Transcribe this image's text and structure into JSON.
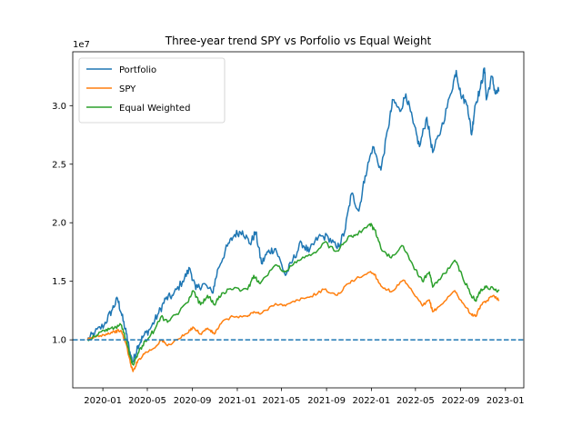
{
  "chart_data": {
    "type": "line",
    "title": "Three-year trend SPY vs Porfolio vs Equal Weight",
    "xlabel": "",
    "ylabel": "",
    "y_offset_label": "1e7",
    "ylim": [
      5.9,
      34.6
    ],
    "xlim": [
      "2019-10-11",
      "2023-02-20"
    ],
    "grid": false,
    "legend_position": "upper-left",
    "x_tick_labels": [
      "2020-01",
      "2020-05",
      "2020-09",
      "2021-01",
      "2021-05",
      "2021-09",
      "2022-01",
      "2022-05",
      "2022-09",
      "2023-01"
    ],
    "x_tick_dates": [
      "2020-01-01",
      "2020-05-01",
      "2020-09-01",
      "2021-01-01",
      "2021-05-01",
      "2021-09-01",
      "2022-01-01",
      "2022-05-01",
      "2022-09-01",
      "2023-01-01"
    ],
    "y_ticks": [
      10,
      15,
      20,
      25,
      30
    ],
    "y_tick_labels": [
      "1.0",
      "1.5",
      "2.0",
      "2.5",
      "3.0"
    ],
    "reference_line": {
      "y": 10,
      "style": "dashed",
      "color": "#1f77b4"
    },
    "series": [
      {
        "name": "Portfolio",
        "color": "#1f77b4",
        "points": [
          [
            "2019-11-20",
            10.0
          ],
          [
            "2019-12-10",
            10.6
          ],
          [
            "2020-01-05",
            11.3
          ],
          [
            "2020-01-25",
            12.5
          ],
          [
            "2020-02-10",
            13.5
          ],
          [
            "2020-02-20",
            12.3
          ],
          [
            "2020-03-05",
            10.5
          ],
          [
            "2020-03-16",
            8.7
          ],
          [
            "2020-03-23",
            8.1
          ],
          [
            "2020-04-05",
            9.5
          ],
          [
            "2020-04-20",
            10.3
          ],
          [
            "2020-05-10",
            11.0
          ],
          [
            "2020-06-01",
            12.3
          ],
          [
            "2020-06-20",
            13.5
          ],
          [
            "2020-07-10",
            13.8
          ],
          [
            "2020-08-05",
            15.0
          ],
          [
            "2020-08-25",
            16.1
          ],
          [
            "2020-09-10",
            14.3
          ],
          [
            "2020-10-01",
            14.8
          ],
          [
            "2020-10-25",
            14.0
          ],
          [
            "2020-11-10",
            16.1
          ],
          [
            "2020-12-05",
            18.0
          ],
          [
            "2020-12-25",
            19.0
          ],
          [
            "2021-01-15",
            19.3
          ],
          [
            "2021-02-05",
            18.2
          ],
          [
            "2021-02-20",
            19.2
          ],
          [
            "2021-03-08",
            16.5
          ],
          [
            "2021-03-25",
            17.5
          ],
          [
            "2021-04-15",
            17.8
          ],
          [
            "2021-05-12",
            15.5
          ],
          [
            "2021-06-01",
            16.8
          ],
          [
            "2021-06-25",
            18.3
          ],
          [
            "2021-07-15",
            17.5
          ],
          [
            "2021-08-10",
            18.8
          ],
          [
            "2021-09-05",
            18.8
          ],
          [
            "2021-09-30",
            17.8
          ],
          [
            "2021-10-20",
            19.2
          ],
          [
            "2021-11-08",
            22.5
          ],
          [
            "2021-11-28",
            21.0
          ],
          [
            "2021-12-15",
            24.0
          ],
          [
            "2022-01-05",
            26.5
          ],
          [
            "2022-01-27",
            24.5
          ],
          [
            "2022-02-15",
            28.0
          ],
          [
            "2022-03-01",
            30.5
          ],
          [
            "2022-03-20",
            29.5
          ],
          [
            "2022-04-05",
            31.0
          ],
          [
            "2022-04-25",
            28.5
          ],
          [
            "2022-05-12",
            26.5
          ],
          [
            "2022-06-01",
            29.0
          ],
          [
            "2022-06-17",
            26.0
          ],
          [
            "2022-07-10",
            28.0
          ],
          [
            "2022-08-05",
            31.0
          ],
          [
            "2022-08-20",
            33.0
          ],
          [
            "2022-09-01",
            31.0
          ],
          [
            "2022-09-20",
            30.0
          ],
          [
            "2022-10-01",
            27.5
          ],
          [
            "2022-10-10",
            30.0
          ],
          [
            "2022-10-25",
            31.5
          ],
          [
            "2022-11-05",
            33.2
          ],
          [
            "2022-11-10",
            30.5
          ],
          [
            "2022-11-25",
            32.5
          ],
          [
            "2022-12-05",
            31.0
          ],
          [
            "2022-12-15",
            31.3
          ]
        ]
      },
      {
        "name": "SPY",
        "color": "#ff7f0e",
        "points": [
          [
            "2019-11-20",
            10.0
          ],
          [
            "2019-12-15",
            10.3
          ],
          [
            "2020-01-10",
            10.5
          ],
          [
            "2020-02-01",
            10.7
          ],
          [
            "2020-02-19",
            10.8
          ],
          [
            "2020-03-05",
            9.6
          ],
          [
            "2020-03-16",
            8.0
          ],
          [
            "2020-03-23",
            7.3
          ],
          [
            "2020-04-05",
            8.2
          ],
          [
            "2020-04-25",
            8.9
          ],
          [
            "2020-05-20",
            9.3
          ],
          [
            "2020-06-08",
            10.0
          ],
          [
            "2020-06-25",
            9.5
          ],
          [
            "2020-07-20",
            10.0
          ],
          [
            "2020-08-20",
            10.6
          ],
          [
            "2020-09-02",
            11.1
          ],
          [
            "2020-09-23",
            10.5
          ],
          [
            "2020-10-12",
            11.0
          ],
          [
            "2020-10-30",
            10.5
          ],
          [
            "2020-11-20",
            11.5
          ],
          [
            "2020-12-20",
            12.0
          ],
          [
            "2021-01-29",
            12.0
          ],
          [
            "2021-02-15",
            12.4
          ],
          [
            "2021-03-04",
            12.2
          ],
          [
            "2021-04-15",
            13.1
          ],
          [
            "2021-05-12",
            12.9
          ],
          [
            "2021-06-15",
            13.4
          ],
          [
            "2021-07-20",
            13.7
          ],
          [
            "2021-08-25",
            14.3
          ],
          [
            "2021-09-30",
            13.8
          ],
          [
            "2021-10-30",
            14.8
          ],
          [
            "2021-11-20",
            15.2
          ],
          [
            "2021-12-28",
            15.8
          ],
          [
            "2022-01-10",
            15.6
          ],
          [
            "2022-01-27",
            14.6
          ],
          [
            "2022-02-24",
            14.1
          ],
          [
            "2022-03-29",
            15.1
          ],
          [
            "2022-04-25",
            14.0
          ],
          [
            "2022-05-20",
            12.9
          ],
          [
            "2022-06-08",
            13.4
          ],
          [
            "2022-06-17",
            12.4
          ],
          [
            "2022-07-10",
            13.0
          ],
          [
            "2022-08-16",
            14.2
          ],
          [
            "2022-09-05",
            13.2
          ],
          [
            "2022-09-30",
            12.2
          ],
          [
            "2022-10-12",
            12.0
          ],
          [
            "2022-10-25",
            12.9
          ],
          [
            "2022-11-10",
            13.3
          ],
          [
            "2022-11-30",
            13.8
          ],
          [
            "2022-12-15",
            13.4
          ]
        ]
      },
      {
        "name": "Equal Weighted",
        "color": "#2ca02c",
        "points": [
          [
            "2019-11-20",
            10.0
          ],
          [
            "2019-12-15",
            10.4
          ],
          [
            "2020-01-10",
            10.9
          ],
          [
            "2020-02-01",
            11.0
          ],
          [
            "2020-02-19",
            11.3
          ],
          [
            "2020-03-05",
            10.0
          ],
          [
            "2020-03-16",
            8.5
          ],
          [
            "2020-03-23",
            7.9
          ],
          [
            "2020-04-05",
            8.8
          ],
          [
            "2020-04-25",
            9.9
          ],
          [
            "2020-05-20",
            10.8
          ],
          [
            "2020-06-08",
            12.0
          ],
          [
            "2020-06-25",
            11.5
          ],
          [
            "2020-07-20",
            12.2
          ],
          [
            "2020-08-20",
            13.2
          ],
          [
            "2020-09-02",
            14.2
          ],
          [
            "2020-09-23",
            13.0
          ],
          [
            "2020-10-12",
            13.8
          ],
          [
            "2020-10-30",
            13.0
          ],
          [
            "2020-11-20",
            14.0
          ],
          [
            "2020-12-20",
            14.3
          ],
          [
            "2021-01-29",
            14.3
          ],
          [
            "2021-02-15",
            15.5
          ],
          [
            "2021-03-04",
            14.8
          ],
          [
            "2021-04-15",
            16.4
          ],
          [
            "2021-05-12",
            15.8
          ],
          [
            "2021-06-15",
            16.8
          ],
          [
            "2021-07-20",
            17.2
          ],
          [
            "2021-08-25",
            18.3
          ],
          [
            "2021-09-30",
            17.6
          ],
          [
            "2021-10-30",
            18.8
          ],
          [
            "2021-11-20",
            19.0
          ],
          [
            "2021-12-28",
            19.9
          ],
          [
            "2022-01-10",
            19.4
          ],
          [
            "2022-01-27",
            17.8
          ],
          [
            "2022-02-24",
            17.0
          ],
          [
            "2022-03-29",
            18.0
          ],
          [
            "2022-04-25",
            16.3
          ],
          [
            "2022-05-20",
            15.0
          ],
          [
            "2022-06-08",
            15.8
          ],
          [
            "2022-06-17",
            14.5
          ],
          [
            "2022-07-10",
            15.3
          ],
          [
            "2022-08-16",
            16.8
          ],
          [
            "2022-09-05",
            15.5
          ],
          [
            "2022-09-30",
            13.8
          ],
          [
            "2022-10-12",
            13.3
          ],
          [
            "2022-10-25",
            14.2
          ],
          [
            "2022-11-10",
            14.6
          ],
          [
            "2022-11-30",
            14.3
          ],
          [
            "2022-12-15",
            14.2
          ]
        ]
      }
    ]
  }
}
